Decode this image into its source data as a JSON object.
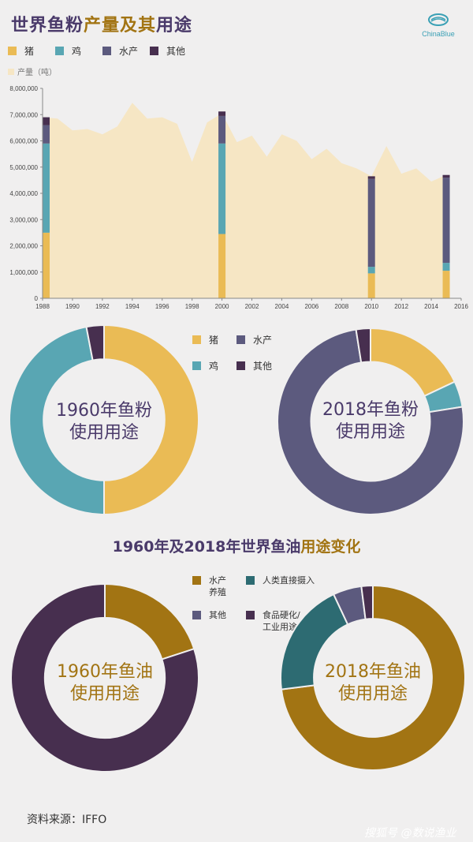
{
  "header": {
    "title_part1": "世界鱼粉",
    "title_part2": "产量及其",
    "title_part3": "用途",
    "logo_text": "ChinaBlue"
  },
  "colors": {
    "pig": "#eabb55",
    "chicken": "#59a6b3",
    "aqua": "#5c5a7e",
    "other": "#472f4f",
    "production": "#f6e6c4",
    "oil_aqua": "#a27413",
    "oil_human": "#2d6b72",
    "oil_other": "#5c5a7e",
    "oil_food": "#472f4f",
    "title_dark": "#4a3a6a",
    "title_gold": "#a27413"
  },
  "legend_top": {
    "items": [
      {
        "label": "猪",
        "color": "#eabb55"
      },
      {
        "label": "鸡",
        "color": "#59a6b3"
      },
      {
        "label": "水产",
        "color": "#5c5a7e"
      },
      {
        "label": "其他",
        "color": "#472f4f"
      }
    ],
    "production_label": "产量（吨）"
  },
  "chart_data": [
    {
      "type": "area",
      "series": [
        {
          "name": "产量（吨）",
          "x": [
            1988,
            1989,
            1990,
            1991,
            1992,
            1993,
            1994,
            1995,
            1996,
            1997,
            1998,
            1999,
            2000,
            2001,
            2002,
            2003,
            2004,
            2005,
            2006,
            2007,
            2008,
            2009,
            2010,
            2011,
            2012,
            2013,
            2014,
            2015
          ],
          "values": [
            6900000,
            6850000,
            6400000,
            6450000,
            6250000,
            6550000,
            7450000,
            6850000,
            6900000,
            6650000,
            5200000,
            6700000,
            7050000,
            5950000,
            6200000,
            5400000,
            6250000,
            6000000,
            5300000,
            5700000,
            5150000,
            4950000,
            4650000,
            5800000,
            4750000,
            4950000,
            4450000,
            4700000
          ]
        }
      ],
      "stacked_bars": [
        {
          "x": 1988,
          "pig": 2500000,
          "chicken": 3400000,
          "aqua": 700000,
          "other": 300000
        },
        {
          "x": 2000,
          "pig": 2450000,
          "chicken": 3450000,
          "aqua": 1050000,
          "other": 170000
        },
        {
          "x": 2010,
          "pig": 950000,
          "chicken": 250000,
          "aqua": 3350000,
          "other": 100000
        },
        {
          "x": 2015,
          "pig": 1050000,
          "chicken": 300000,
          "aqua": 3250000,
          "other": 100000
        }
      ],
      "xlim": [
        1988,
        2016
      ],
      "ylim": [
        0,
        8000000
      ],
      "x_ticks": [
        1988,
        1990,
        1992,
        1994,
        1996,
        1998,
        2000,
        2002,
        2004,
        2006,
        2008,
        2010,
        2012,
        2014,
        2016
      ],
      "y_ticks": [
        0,
        1000000,
        2000000,
        3000000,
        4000000,
        5000000,
        6000000,
        7000000,
        8000000
      ],
      "y_tick_labels": [
        "0",
        "1,000,000",
        "2,000,000",
        "3,000,000",
        "4,000,000",
        "5,000,000",
        "6,000,000",
        "7,000,000",
        "8,000,000"
      ],
      "grid": false
    },
    {
      "type": "pie",
      "title": "1960年鱼粉使用用途",
      "categories": [
        "猪",
        "鸡",
        "水产",
        "其他"
      ],
      "values": [
        50,
        47,
        0,
        3
      ]
    },
    {
      "type": "pie",
      "title": "2018年鱼粉使用用途",
      "categories": [
        "猪",
        "鸡",
        "水产",
        "其他"
      ],
      "values": [
        18,
        4.5,
        75,
        2.5
      ]
    },
    {
      "type": "pie",
      "title": "1960年鱼油使用用途",
      "categories": [
        "水产养殖",
        "人类直接摄入",
        "其他",
        "食品硬化/工业用途"
      ],
      "values": [
        20,
        0,
        0,
        80
      ]
    },
    {
      "type": "pie",
      "title": "2018年鱼油使用用途",
      "categories": [
        "水产养殖",
        "人类直接摄入",
        "其他",
        "食品硬化/工业用途"
      ],
      "values": [
        73,
        20,
        5,
        2
      ]
    }
  ],
  "fishmeal_legend": {
    "items": [
      {
        "label": "猪",
        "color": "#eabb55"
      },
      {
        "label": "水产",
        "color": "#5c5a7e"
      },
      {
        "label": "鸡",
        "color": "#59a6b3"
      },
      {
        "label": "其他",
        "color": "#472f4f"
      }
    ]
  },
  "donut_labels": {
    "fm1960_line1": "1960年鱼粉",
    "fm1960_line2": "使用用途",
    "fm2018_line1": "2018年鱼粉",
    "fm2018_line2": "使用用途",
    "fo1960_line1": "1960年鱼油",
    "fo1960_line2": "使用用途",
    "fo2018_line1": "2018年鱼油",
    "fo2018_line2": "使用用途"
  },
  "fishoil_heading": {
    "part1": "1960年及2018年世界鱼油",
    "part2": "用途变化"
  },
  "fishoil_legend": {
    "aqua_line1": "水产",
    "aqua_line2": "养殖",
    "human": "人类直接摄入",
    "other": "其他",
    "food_line1": "食品硬化/",
    "food_line2": "工业用途"
  },
  "footer": {
    "source": "资料来源：IFFO",
    "watermark": "搜狐号 @数说渔业"
  }
}
